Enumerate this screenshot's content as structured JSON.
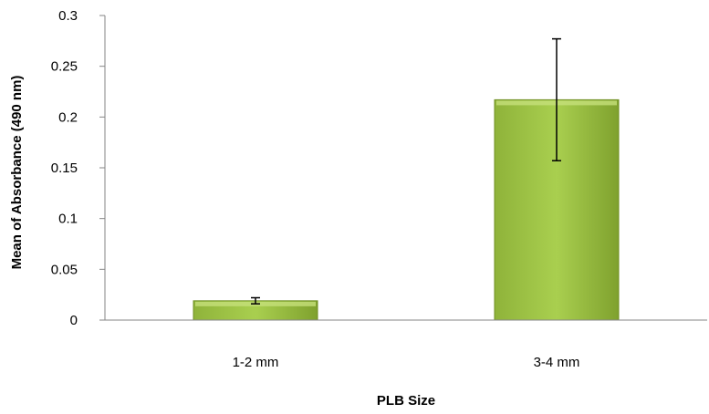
{
  "chart_data": {
    "type": "bar",
    "title": "",
    "xlabel": "PLB Size",
    "ylabel": "Mean of Absorbance (490 nm)",
    "categories": [
      "1-2 mm",
      "3-4 mm"
    ],
    "values": [
      0.019,
      0.217
    ],
    "error": [
      0.003,
      0.06
    ],
    "ylim": [
      0,
      0.3
    ],
    "yticks": [
      0,
      0.05,
      0.1,
      0.15,
      0.2,
      0.25,
      0.3
    ],
    "ytick_labels": [
      "0",
      "0.05",
      "0.1",
      "0.15",
      "0.2",
      "0.25",
      "0.3"
    ],
    "grid": false,
    "legend": "none",
    "colors": {
      "bar_fill": "#a8cc4e",
      "bar_edge": "#6f8f22",
      "error_bar": "#000000"
    }
  }
}
